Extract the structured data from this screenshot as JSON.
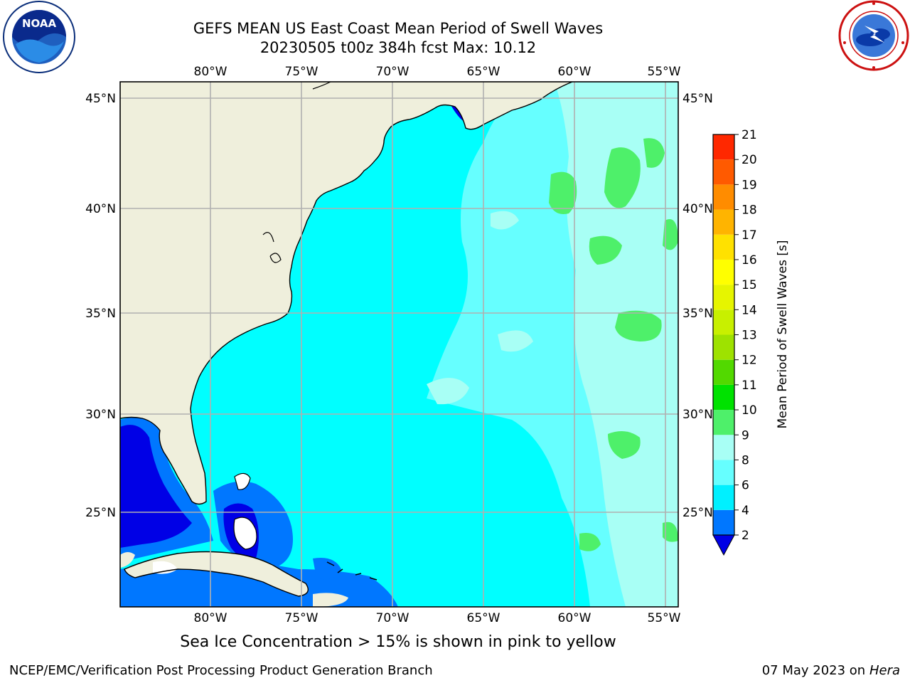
{
  "header": {
    "title_line1": "GEFS MEAN US East Coast Mean Period of Swell Waves",
    "title_line2": "20230505 t00z 384h fcst   Max: 10.12"
  },
  "logos": {
    "left": "noaa-logo",
    "right": "nws-logo",
    "noaa_text": "NOAA"
  },
  "map": {
    "lon_labels": [
      "80°W",
      "75°W",
      "70°W",
      "65°W",
      "60°W",
      "55°W"
    ],
    "lat_labels": [
      "45°N",
      "40°N",
      "35°N",
      "30°N",
      "25°N"
    ],
    "colors": {
      "land": "#efefdc",
      "grid": "#b0b0b0"
    }
  },
  "colorbar": {
    "label": "Mean Period of Swell Waves [s]",
    "ticks": [
      "2",
      "4",
      "6",
      "8",
      "9",
      "10",
      "11",
      "12",
      "13",
      "14",
      "15",
      "16",
      "17",
      "18",
      "19",
      "20",
      "21"
    ],
    "colors": [
      "#0000e6",
      "#0077ff",
      "#00f0ff",
      "#66ffff",
      "#a8fff5",
      "#4ef06a",
      "#00e200",
      "#52d900",
      "#9ee200",
      "#c8f000",
      "#e6f500",
      "#ffff00",
      "#ffe100",
      "#ffb400",
      "#ff8c00",
      "#ff5a00",
      "#ff2800",
      "#ff0000"
    ]
  },
  "footer": {
    "note": "Sea Ice Concentration > 15% is shown in pink to yellow",
    "credit": "NCEP/EMC/Verification Post Processing Product Generation Branch",
    "date": "07 May 2023 on",
    "machine": "Hera"
  }
}
